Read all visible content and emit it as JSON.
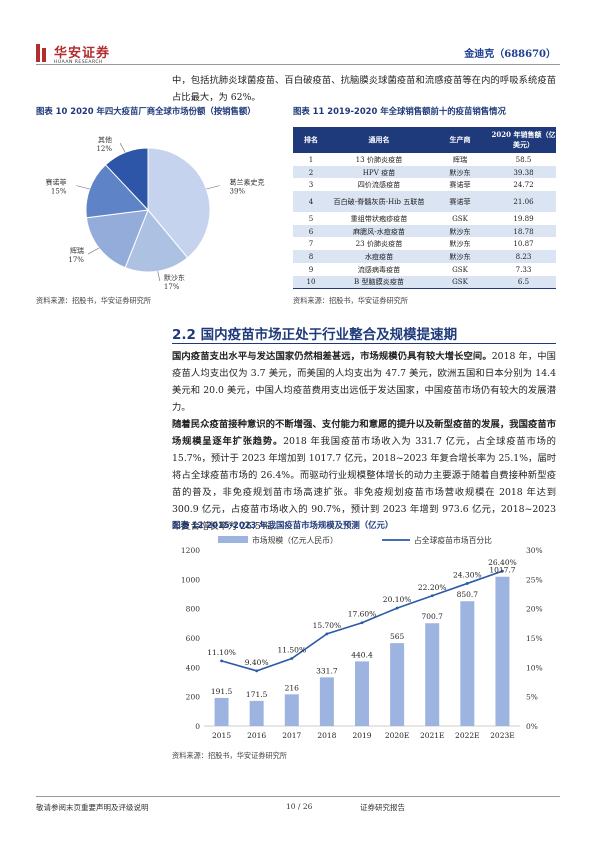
{
  "header": {
    "logo_cn": "华安证券",
    "logo_en": "HUAAN RESEARCH",
    "company": "金迪克（688670）"
  },
  "intro_para": "中，包括抗肺炎球菌疫苗、百白破疫苗、抗脑膜炎球菌疫苗和流感疫苗等在内的呼吸系统疫苗占比最大，为 62%。",
  "fig10": {
    "title": "图表 10 2020 年四大疫苗厂商全球市场份额（按销售额）",
    "source": "资料来源：招股书，华安证券研究所",
    "colors": {
      "gsk": "#c5d3ee",
      "sanofi": "#adc1e3",
      "pfizer": "#93acd9",
      "merck": "#5e83c6",
      "other": "#2d55a8"
    }
  },
  "fig11": {
    "title": "图表 11 2019-2020 年全球销售额前十的疫苗销售情况",
    "headers": [
      "排名",
      "通用名",
      "生产商",
      "2020 年销售额（亿美元）"
    ],
    "rows": [
      [
        "1",
        "13 价肺炎疫苗",
        "辉瑞",
        "58.5"
      ],
      [
        "2",
        "HPV 疫苗",
        "默沙东",
        "39.38"
      ],
      [
        "3",
        "四价流感疫苗",
        "赛诺菲",
        "24.72"
      ],
      [
        "4",
        "百白破-脊髓灰质-Hib 五联苗",
        "赛诺菲",
        "21.06"
      ],
      [
        "5",
        "重组带状疱疹疫苗",
        "GSK",
        "19.89"
      ],
      [
        "6",
        "麻腮风-水痘疫苗",
        "默沙东",
        "18.78"
      ],
      [
        "7",
        "23 价肺炎疫苗",
        "默沙东",
        "10.87"
      ],
      [
        "8",
        "水痘疫苗",
        "默沙东",
        "8.23"
      ],
      [
        "9",
        "流感病毒疫苗",
        "GSK",
        "7.33"
      ],
      [
        "10",
        "B 型脑膜炎疫苗",
        "GSK",
        "6.5"
      ]
    ],
    "source": "资料来源：招股书，华安证券研究所"
  },
  "section": {
    "title": "2.2 国内疫苗市场正处于行业整合及规模提速期"
  },
  "para2_bold": "国内疫苗支出水平与发达国家仍然相差甚远，市场规模仍具有较大增长空间。",
  "para2_rest": "2018 年，中国疫苗人均支出仅为 3.7 美元，而美国的人均支出为 47.7 美元，欧洲五国和日本分别为 14.4 美元和 20.0 美元，中国人均疫苗费用支出远低于发达国家，中国疫苗市场仍有较大的发展潜力。",
  "para3_bold": "随着民众疫苗接种意识的不断增强、支付能力和意愿的提升以及新型疫苗的发展，我国疫苗市场规模呈逐年扩张趋势。",
  "para3_rest": "2018 年我国疫苗市场收入为 331.7 亿元，占全球疫苗市场的 15.7%，预计于 2023 年增加到 1017.7 亿元，2018~2023 年复合增长率为 25.1%，届时将占全球疫苗市场的 26.4%。而驱动行业规模整体增长的动力主要源于随着自费接种新型疫苗的普及，非免疫规划苗市场高速扩张。非免疫规划疫苗市场营收规模在 2018 年达到 300.9 亿元，占疫苗市场收入的 90.7%，预计到 2023 年增到 973.6 亿元，2018~2023 年复合增长率为 26.5%。",
  "fig12": {
    "title": "图表 12 2015-2023 年我国疫苗市场规模及预测（亿元）",
    "source": "资料来源：招股书，华安证券研究所"
  },
  "chart_data": [
    {
      "type": "pie",
      "labels": [
        "葛兰素史克",
        "默沙东",
        "辉瑞",
        "赛诺菲",
        "其他"
      ],
      "keys": [
        "gsk",
        "sanofi",
        "pfizer",
        "merck",
        "other"
      ],
      "values": [
        39,
        17,
        17,
        15,
        12
      ],
      "value_labels": [
        "39%",
        "17%",
        "17%",
        "15%",
        "12%"
      ]
    },
    {
      "type": "bar",
      "categories": [
        "2015",
        "2016",
        "2017",
        "2018",
        "2019",
        "2020E",
        "2021E",
        "2022E",
        "2023E"
      ],
      "series": [
        {
          "name": "市场规模（亿元人民币）",
          "values": [
            191.5,
            171.5,
            216,
            331.7,
            440.4,
            565,
            700.7,
            850.7,
            1017.7
          ],
          "labels": [
            "191.5",
            "171.5",
            "216",
            "331.7",
            "440.4",
            "565",
            "700.7",
            "850.7",
            "1017.7"
          ],
          "color": "#9db4e0"
        },
        {
          "name": "占全球疫苗市场百分比",
          "type": "line",
          "values": [
            11.1,
            9.4,
            11.5,
            15.7,
            17.6,
            20.1,
            22.2,
            24.3,
            26.4
          ],
          "labels": [
            "11.10%",
            "9.40%",
            "11.50%",
            "15.70%",
            "17.60%",
            "20.10%",
            "22.20%",
            "24.30%",
            "26.40%"
          ],
          "color": "#2a5aa8"
        }
      ],
      "y_left": {
        "ylim": [
          0,
          1200
        ],
        "ticks": [
          "0",
          "200",
          "400",
          "600",
          "800",
          "1000",
          "1200"
        ]
      },
      "y_right": {
        "ylim": [
          0,
          30
        ],
        "ticks": [
          "0%",
          "5%",
          "10%",
          "15%",
          "20%",
          "25%",
          "30%"
        ]
      }
    }
  ],
  "footer": {
    "left": "敬请参阅末页重要声明及评级说明",
    "page": "10 / 26",
    "right": "证券研究报告"
  }
}
